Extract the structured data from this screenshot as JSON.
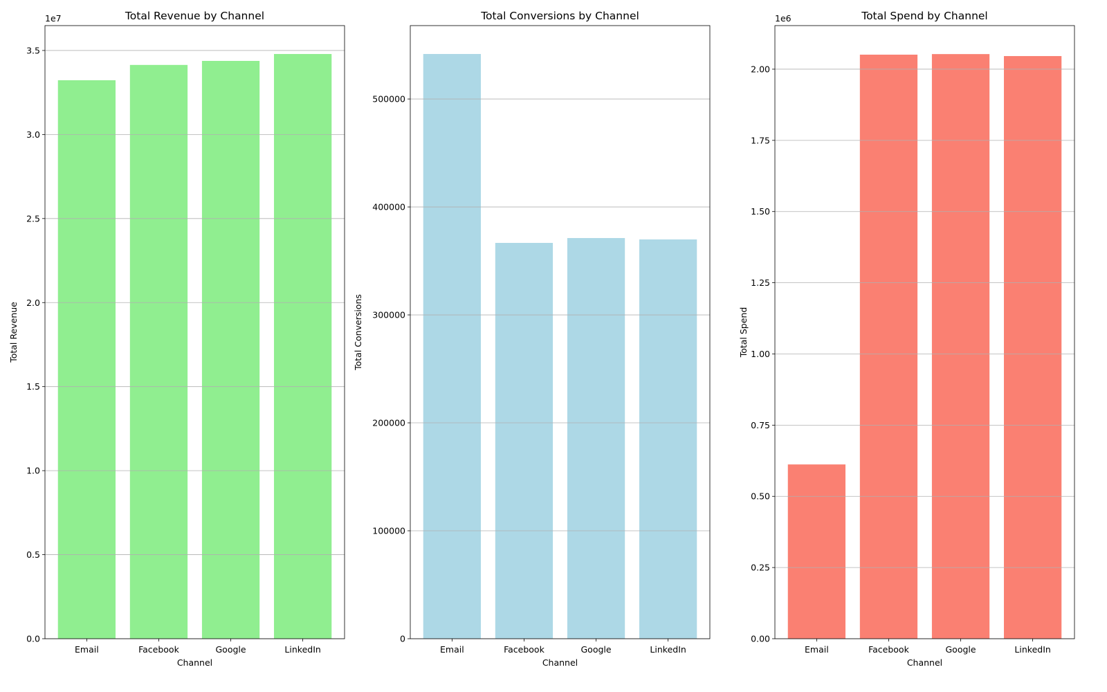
{
  "chart_data": [
    {
      "type": "bar",
      "title": "Total Revenue by Channel",
      "xlabel": "Channel",
      "ylabel": "Total Revenue",
      "categories": [
        "Email",
        "Facebook",
        "Google",
        "LinkedIn"
      ],
      "values": [
        33230000,
        34140000,
        34380000,
        34790000
      ],
      "ylim": [
        0,
        36480000
      ],
      "yticks": [
        0,
        5000000,
        10000000,
        15000000,
        20000000,
        25000000,
        30000000,
        35000000
      ],
      "ytick_labels": [
        "0.0",
        "0.5",
        "1.0",
        "1.5",
        "2.0",
        "2.5",
        "3.0",
        "3.5"
      ],
      "offset_label": "1e7",
      "color": "#90EE90",
      "grid": "y"
    },
    {
      "type": "bar",
      "title": "Total Conversions by Channel",
      "xlabel": "Channel",
      "ylabel": "Total Conversions",
      "categories": [
        "Email",
        "Facebook",
        "Google",
        "LinkedIn"
      ],
      "values": [
        541700,
        366700,
        371200,
        369900
      ],
      "ylim": [
        0,
        568000
      ],
      "yticks": [
        0,
        100000,
        200000,
        300000,
        400000,
        500000
      ],
      "ytick_labels": [
        "0",
        "100000",
        "200000",
        "300000",
        "400000",
        "500000"
      ],
      "offset_label": "",
      "color": "#ADD8E6",
      "grid": "y"
    },
    {
      "type": "bar",
      "title": "Total Spend by Channel",
      "xlabel": "Channel",
      "ylabel": "Total Spend",
      "categories": [
        "Email",
        "Facebook",
        "Google",
        "LinkedIn"
      ],
      "values": [
        612000,
        2051000,
        2053000,
        2046000
      ],
      "ylim": [
        0,
        2153000
      ],
      "yticks": [
        0,
        250000,
        500000,
        750000,
        1000000,
        1250000,
        1500000,
        1750000,
        2000000
      ],
      "ytick_labels": [
        "0.00",
        "0.25",
        "0.50",
        "0.75",
        "1.00",
        "1.25",
        "1.50",
        "1.75",
        "2.00"
      ],
      "offset_label": "1e6",
      "color": "#FA8072",
      "grid": "y"
    }
  ]
}
